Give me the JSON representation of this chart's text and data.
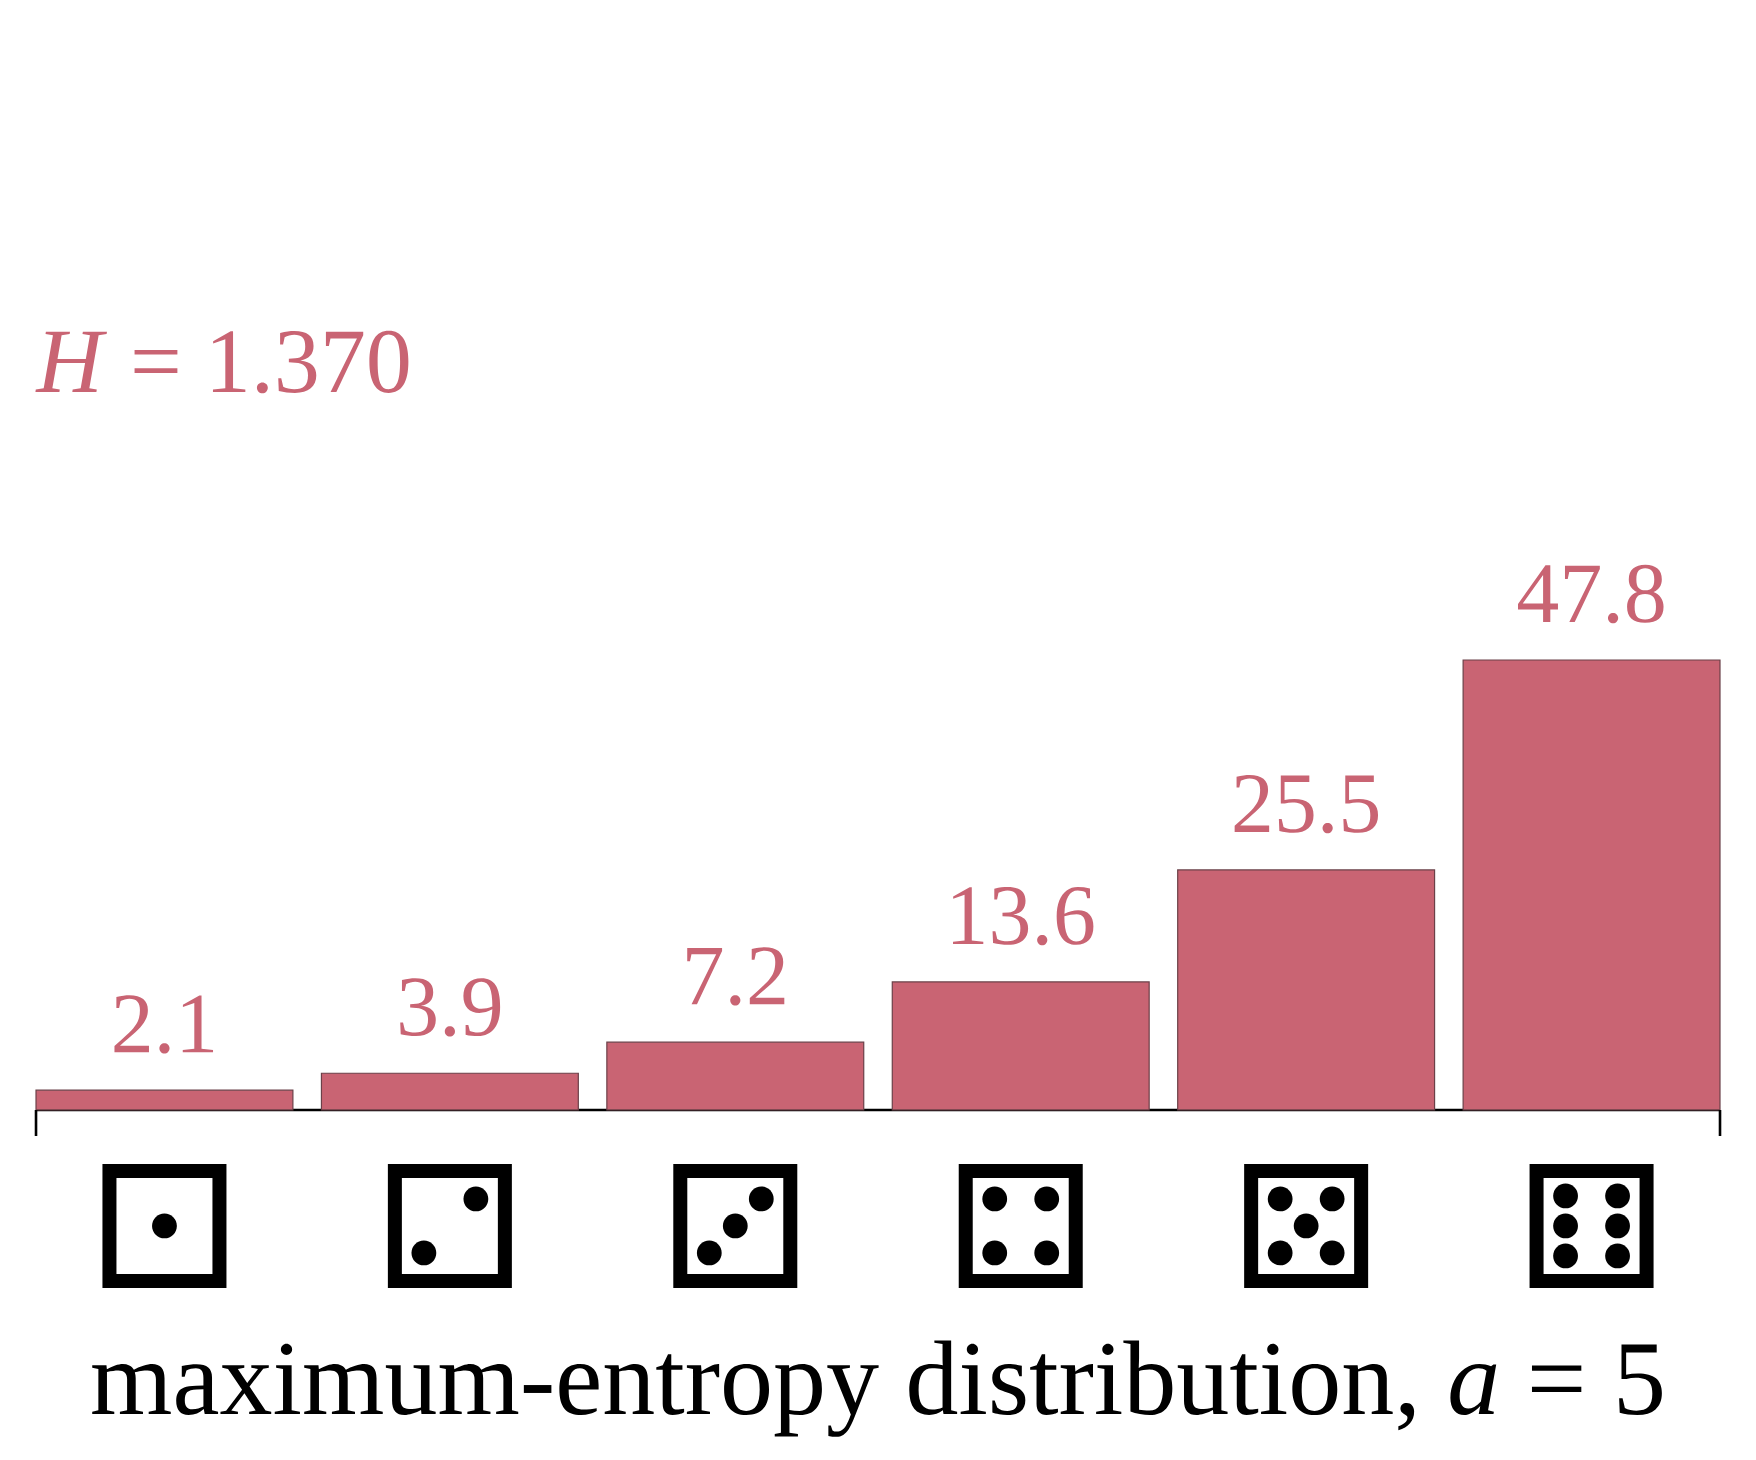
{
  "chart_data": {
    "type": "bar",
    "categories": [
      null,
      null,
      null,
      null,
      null,
      null
    ],
    "values": [
      2.1,
      3.9,
      7.2,
      13.6,
      25.5,
      47.8
    ],
    "color": "#c96473",
    "data_labels": true,
    "xlabel": "maximum-entropy distribution, *a* = 5",
    "annotations": [
      "*H* = 1.370"
    ]
  }
}
